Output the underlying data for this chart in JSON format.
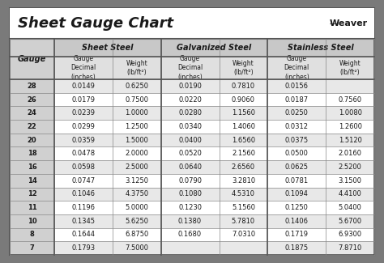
{
  "title": "Sheet Gauge Chart",
  "bg_outer": "#7a7a7a",
  "bg_inner": "#ffffff",
  "title_area_bg": "#ffffff",
  "header1_bg": "#c8c8c8",
  "header2_bg": "#e0e0e0",
  "gauge_col_bg": "#d0d0d0",
  "row_bg_odd": "#e8e8e8",
  "row_bg_even": "#ffffff",
  "col_headers": [
    "Sheet Steel",
    "Galvanized Steel",
    "Stainless Steel"
  ],
  "gauges": [
    28,
    26,
    24,
    22,
    20,
    18,
    16,
    14,
    12,
    11,
    10,
    8,
    7
  ],
  "sheet_steel": [
    [
      "0.0149",
      "0.6250"
    ],
    [
      "0.0179",
      "0.7500"
    ],
    [
      "0.0239",
      "1.0000"
    ],
    [
      "0.0299",
      "1.2500"
    ],
    [
      "0.0359",
      "1.5000"
    ],
    [
      "0.0478",
      "2.0000"
    ],
    [
      "0.0598",
      "2.5000"
    ],
    [
      "0.0747",
      "3.1250"
    ],
    [
      "0.1046",
      "4.3750"
    ],
    [
      "0.1196",
      "5.0000"
    ],
    [
      "0.1345",
      "5.6250"
    ],
    [
      "0.1644",
      "6.8750"
    ],
    [
      "0.1793",
      "7.5000"
    ]
  ],
  "galvanized_steel": [
    [
      "0.0190",
      "0.7810"
    ],
    [
      "0.0220",
      "0.9060"
    ],
    [
      "0.0280",
      "1.1560"
    ],
    [
      "0.0340",
      "1.4060"
    ],
    [
      "0.0400",
      "1.6560"
    ],
    [
      "0.0520",
      "2.1560"
    ],
    [
      "0.0640",
      "2.6560"
    ],
    [
      "0.0790",
      "3.2810"
    ],
    [
      "0.1080",
      "4.5310"
    ],
    [
      "0.1230",
      "5.1560"
    ],
    [
      "0.1380",
      "5.7810"
    ],
    [
      "0.1680",
      "7.0310"
    ],
    [
      "",
      ""
    ]
  ],
  "stainless_steel": [
    [
      "0.0156",
      ""
    ],
    [
      "0.0187",
      "0.7560"
    ],
    [
      "0.0250",
      "1.0080"
    ],
    [
      "0.0312",
      "1.2600"
    ],
    [
      "0.0375",
      "1.5120"
    ],
    [
      "0.0500",
      "2.0160"
    ],
    [
      "0.0625",
      "2.5200"
    ],
    [
      "0.0781",
      "3.1500"
    ],
    [
      "0.1094",
      "4.4100"
    ],
    [
      "0.1250",
      "5.0400"
    ],
    [
      "0.1406",
      "5.6700"
    ],
    [
      "0.1719",
      "6.9300"
    ],
    [
      "0.1875",
      "7.8710"
    ]
  ],
  "text_color": "#1a1a1a",
  "line_color": "#888888",
  "thick_line_color": "#555555",
  "font_size_title": 13,
  "font_size_col_header": 7,
  "font_size_subheader": 5.5,
  "font_size_data": 6.0,
  "font_size_gauge_label": 7,
  "weaver_fontsize": 8
}
